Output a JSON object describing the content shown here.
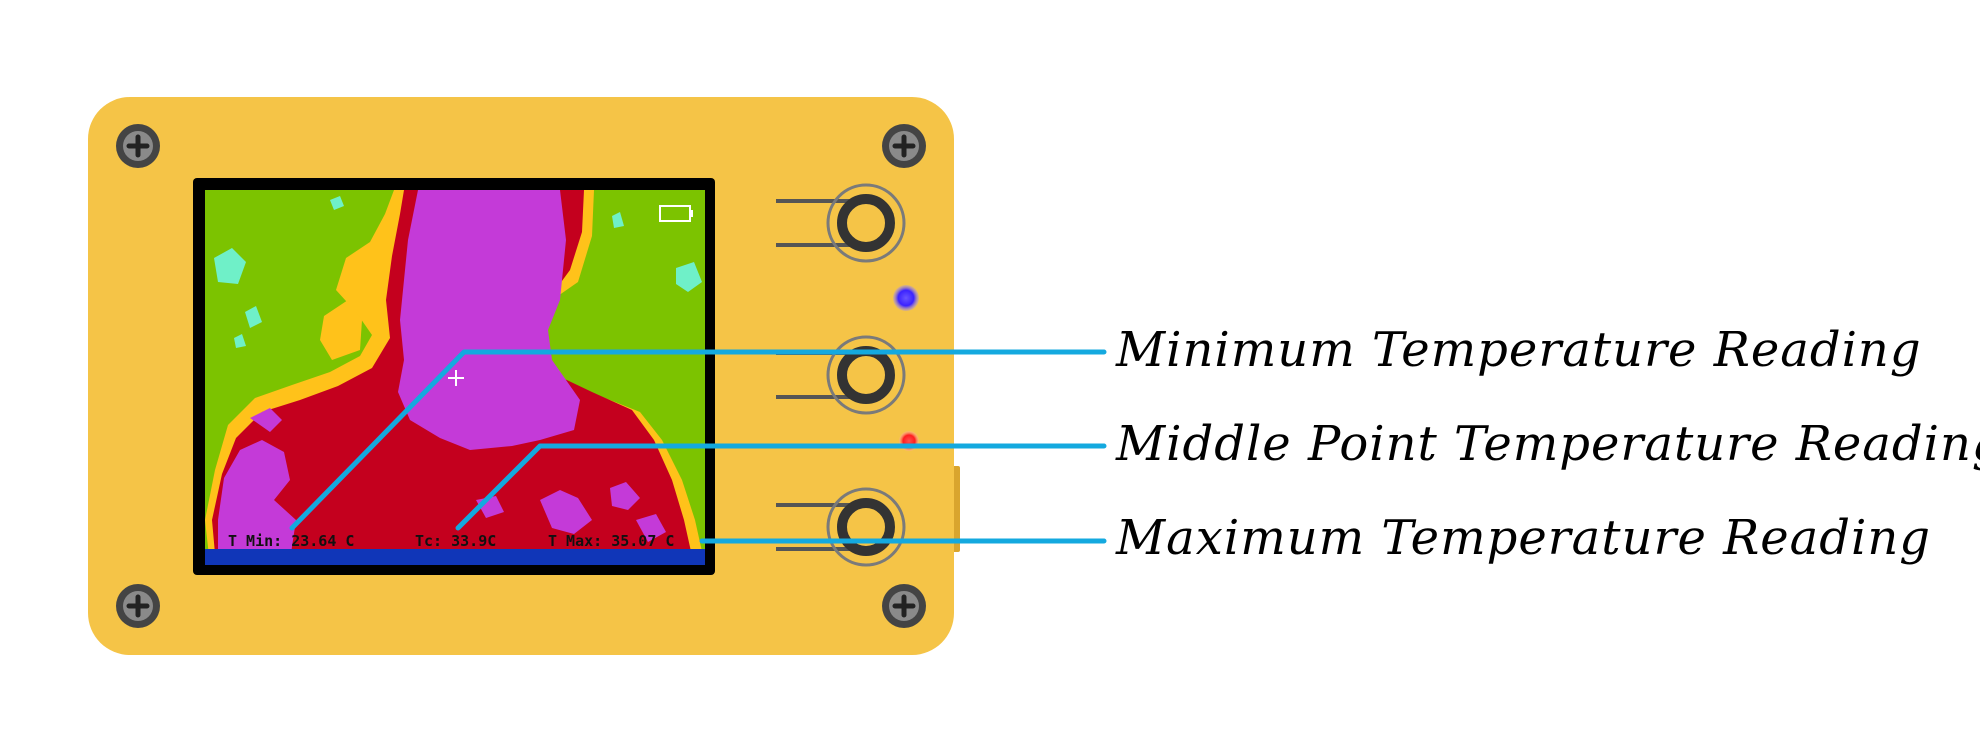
{
  "screen": {
    "t_min": "T Min: 23.64 C",
    "t_center": "Tc: 33.9C",
    "t_max": "T Max: 35.07 C"
  },
  "callouts": [
    {
      "id": "min",
      "label": "Minimum Temperature Reading"
    },
    {
      "id": "mid",
      "label": "Middle Point Temperature Reading"
    },
    {
      "id": "max",
      "label": "Maximum Temperature Reading"
    }
  ],
  "colors": {
    "device_body": "#f5c447",
    "leader_line": "#14a9df",
    "thermal_hot": "#c43ad8",
    "thermal_warm": "#c4001e",
    "thermal_mild": "#ffc21a",
    "thermal_cool": "#7cc300",
    "thermal_cold": "#6ff0c8",
    "led_blue": "#3b22ff",
    "led_red": "#ff1e1e"
  },
  "icons": [
    "screw-icon",
    "button-icon",
    "battery-icon",
    "crosshair-icon"
  ]
}
